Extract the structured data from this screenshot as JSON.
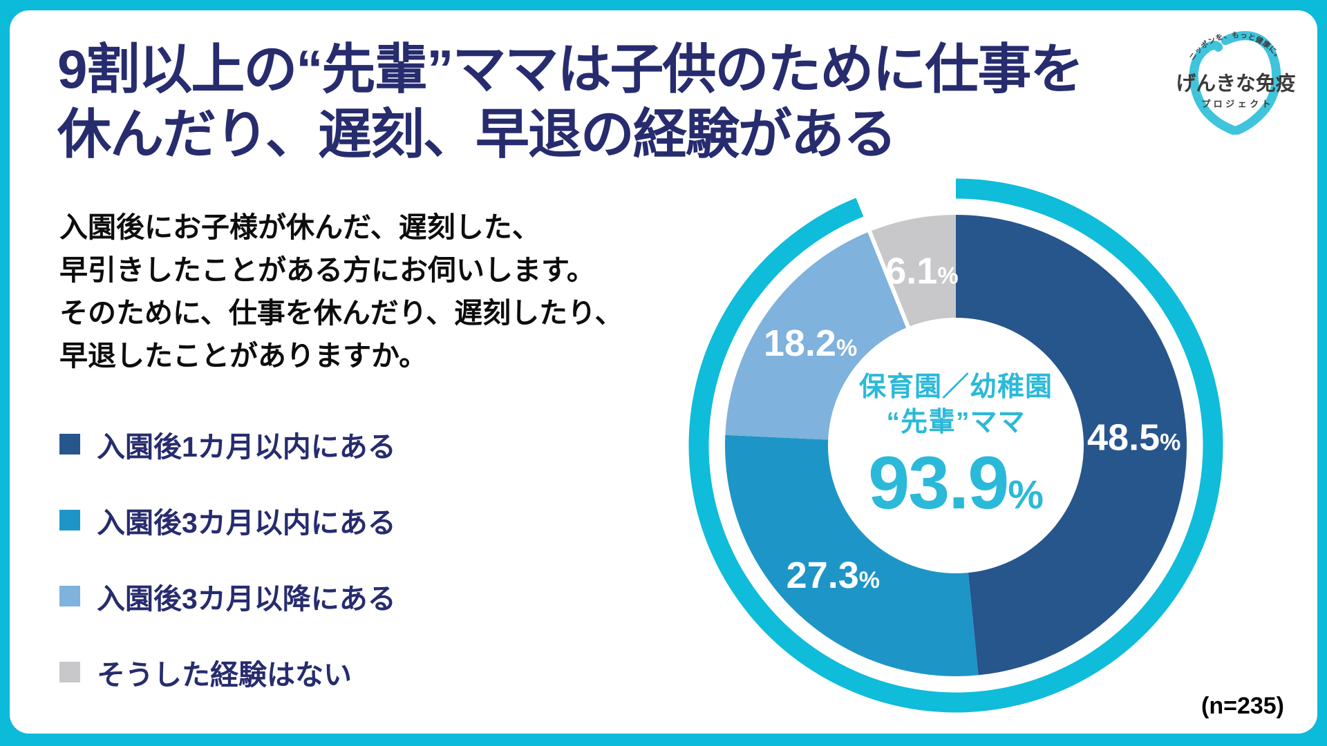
{
  "frame": {
    "accent_color": "#0CBAD9",
    "panel_color": "#FFFFFF"
  },
  "header": {
    "title_line1": "9割以上の“先輩”ママは子供のために仕事を",
    "title_line2": "休んだり、遅刻、早退の経験がある",
    "title_color": "#272C6E"
  },
  "question": {
    "lines": [
      "入園後にお子様が休んだ、遅刻した、",
      "早引きしたことがある方にお伺いします。",
      "そのために、仕事を休んだり、遅刻したり、",
      "早退したことがありますか。"
    ]
  },
  "legend": {
    "position": "left",
    "items": [
      {
        "label": "入園後1カ月以内にある",
        "color": "#27568C"
      },
      {
        "label": "入園後3カ月以内にある",
        "color": "#1E95C7"
      },
      {
        "label": "入園後3カ月以降にある",
        "color": "#7FB2DC"
      },
      {
        "label": "そうした経験はない",
        "color": "#C8C8CA"
      }
    ]
  },
  "chart_data": {
    "type": "pie",
    "subtype": "donut",
    "title": "9割以上の“先輩”ママは子供のために仕事を休んだり、遅刻、早退の経験がある",
    "categories": [
      "入園後1カ月以内にある",
      "入園後3カ月以内にある",
      "入園後3カ月以降にある",
      "そうした経験はない"
    ],
    "values": [
      48.5,
      27.3,
      18.2,
      6.1
    ],
    "unit": "%",
    "colors": [
      "#27568C",
      "#1E95C7",
      "#7FB2DC",
      "#C8C8CA"
    ],
    "start_angle_deg": 0,
    "direction": "clockwise",
    "donut_hole_ratio": 0.55,
    "highlight_arc": {
      "percent": 93.9,
      "color": "#0FBCDA"
    },
    "center": {
      "line1": "保育園／幼稚園",
      "line2": "“先輩”ママ",
      "value": "93.9",
      "unit": "%"
    },
    "sample_size": "(n=235)"
  },
  "logo": {
    "tagline": "ニッポンを、もっと健康に。",
    "name": "げんきな免疫",
    "subname": "プロジェクト",
    "shield_color": "#3FC4DC",
    "text_color": "#3A3A3A"
  },
  "footnote": {
    "sample_size": "(n=235)"
  }
}
